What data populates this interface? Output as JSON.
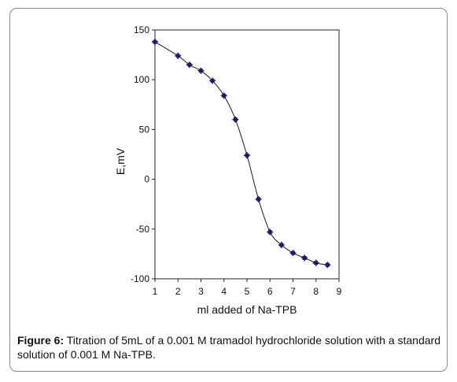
{
  "chart_data": {
    "type": "line",
    "x": [
      1,
      2,
      2.5,
      3,
      3.5,
      4,
      4.5,
      5,
      5.5,
      6,
      6.5,
      7,
      7.5,
      8,
      8.5
    ],
    "y": [
      138,
      124,
      115,
      109,
      99,
      84,
      60,
      24,
      -20,
      -53,
      -66,
      -74,
      -79,
      -84,
      -86
    ],
    "xlabel": "ml added of Na-TPB",
    "ylabel": "E,mV",
    "xlim": [
      1,
      9
    ],
    "ylim": [
      -100,
      150
    ],
    "xticks": [
      1,
      2,
      3,
      4,
      5,
      6,
      7,
      8,
      9
    ],
    "yticks": [
      150,
      100,
      50,
      0,
      -50,
      -100
    ],
    "grid": false,
    "marker": "star",
    "line_color": "#1a1a1a",
    "marker_color": "#1a1a66"
  },
  "caption": {
    "label": "Figure 6:",
    "text": "Titration of 5mL of a 0.001 M tramadol hydrochloride solution  with a standard solution of 0.001 M Na-TPB."
  }
}
